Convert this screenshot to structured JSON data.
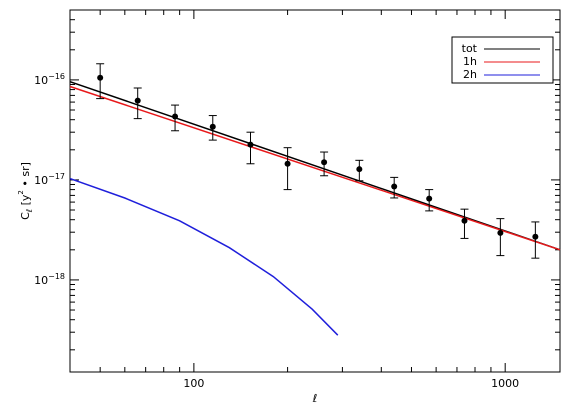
{
  "chart_data": {
    "type": "line",
    "xlabel": "ℓ",
    "ylabel": "C_ℓ [y² • sr]",
    "ylabel_main": "C",
    "ylabel_sub": "ℓ",
    "ylabel_units": "[y",
    "ylabel_units_sup": "2",
    "ylabel_units_end": " • sr]",
    "x_scale": "log",
    "y_scale": "log",
    "xlim": [
      40,
      1500
    ],
    "ylim": [
      1.2e-19,
      5e-16
    ],
    "x_ticks": [
      {
        "value": 100,
        "label": "100"
      },
      {
        "value": 1000,
        "label": "1000"
      }
    ],
    "y_ticks": [
      {
        "value": 1e-16,
        "base": "10",
        "exp": "−16"
      },
      {
        "value": 1e-17,
        "base": "10",
        "exp": "−17"
      },
      {
        "value": 1e-18,
        "base": "10",
        "exp": "−18"
      }
    ],
    "grid": false,
    "legend_position": "top-right",
    "series": [
      {
        "name": "tot",
        "color": "#000000",
        "x": [
          40,
          1500
        ],
        "y": [
          9.6e-17,
          2e-18
        ]
      },
      {
        "name": "1h",
        "color": "#e8191b",
        "x": [
          40,
          1500
        ],
        "y": [
          8.6e-17,
          2e-18
        ]
      },
      {
        "name": "2h",
        "color": "#1f1fdb",
        "x": [
          40,
          60,
          90,
          130,
          180,
          240,
          290
        ],
        "y": [
          1.03e-17,
          6.6e-18,
          3.9e-18,
          2.1e-18,
          1.08e-18,
          5.1e-19,
          2.8e-19
        ]
      }
    ],
    "data_points": {
      "color": "#000000",
      "points": [
        {
          "x": 50,
          "y": 1.05e-16,
          "lo": 6.5e-17,
          "hi": 1.45e-16
        },
        {
          "x": 66,
          "y": 6.2e-17,
          "lo": 4.1e-17,
          "hi": 8.3e-17
        },
        {
          "x": 87,
          "y": 4.3e-17,
          "lo": 3.1e-17,
          "hi": 5.6e-17
        },
        {
          "x": 115,
          "y": 3.4e-17,
          "lo": 2.5e-17,
          "hi": 4.4e-17
        },
        {
          "x": 152,
          "y": 2.25e-17,
          "lo": 1.45e-17,
          "hi": 3e-17
        },
        {
          "x": 200,
          "y": 1.45e-17,
          "lo": 8e-18,
          "hi": 2.1e-17
        },
        {
          "x": 262,
          "y": 1.5e-17,
          "lo": 1.1e-17,
          "hi": 1.9e-17
        },
        {
          "x": 340,
          "y": 1.28e-17,
          "lo": 9.8e-18,
          "hi": 1.57e-17
        },
        {
          "x": 440,
          "y": 8.6e-18,
          "lo": 6.6e-18,
          "hi": 1.06e-17
        },
        {
          "x": 570,
          "y": 6.5e-18,
          "lo": 4.9e-18,
          "hi": 8e-18
        },
        {
          "x": 740,
          "y": 3.9e-18,
          "lo": 2.6e-18,
          "hi": 5.1e-18
        },
        {
          "x": 965,
          "y": 2.95e-18,
          "lo": 1.75e-18,
          "hi": 4.1e-18
        },
        {
          "x": 1250,
          "y": 2.7e-18,
          "lo": 1.65e-18,
          "hi": 3.8e-18
        }
      ]
    }
  }
}
